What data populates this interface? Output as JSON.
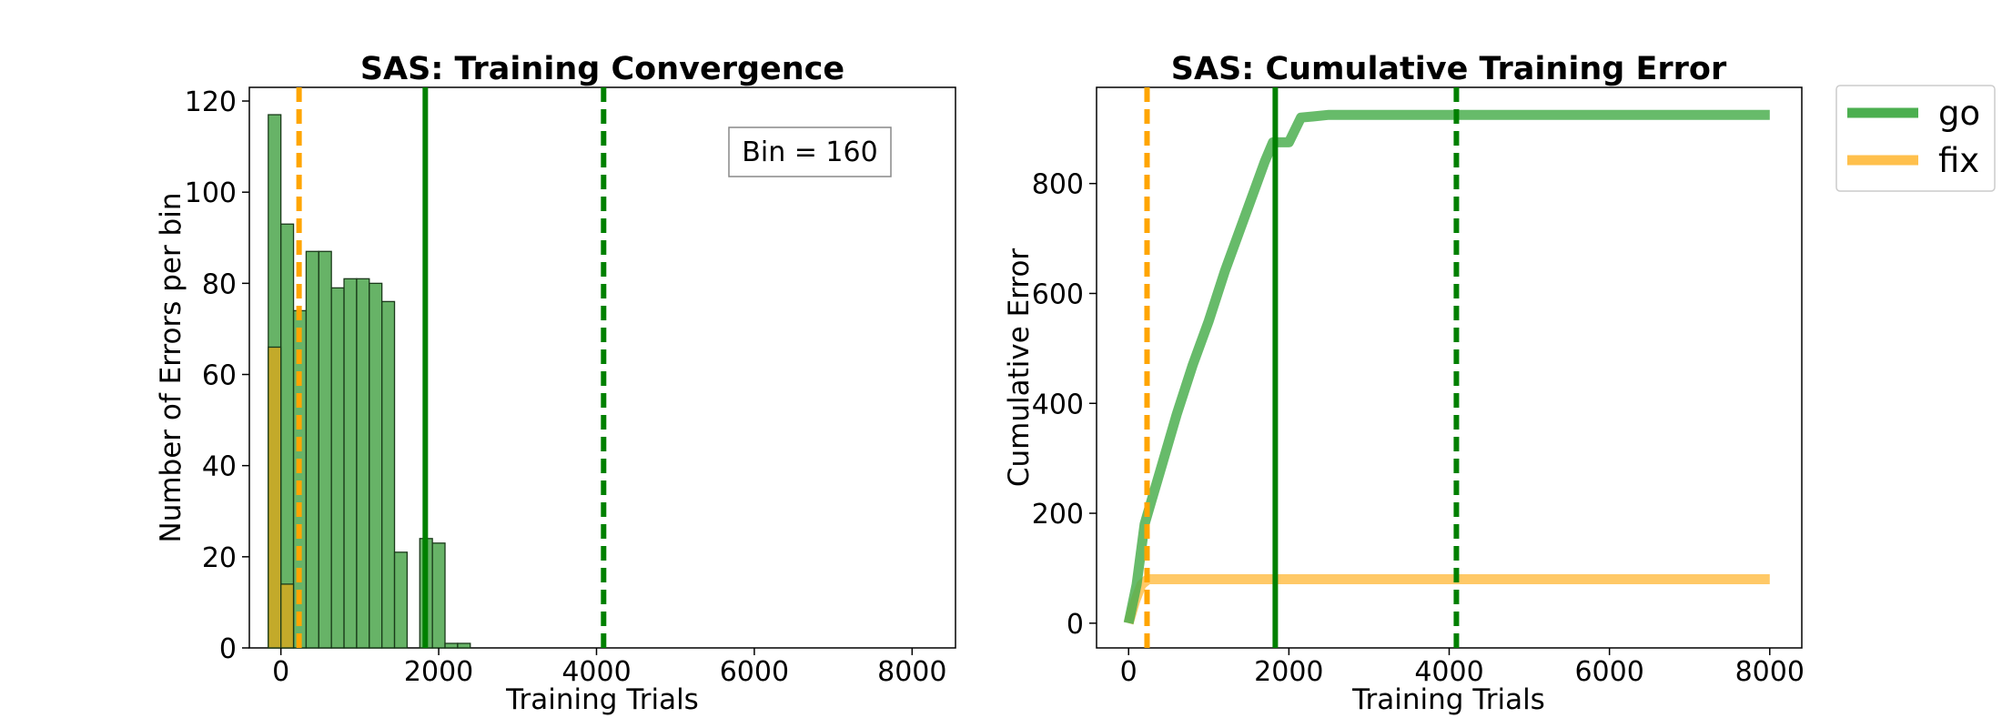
{
  "chart_data": [
    {
      "type": "bar",
      "title": "SAS: Training Convergence",
      "xlabel": "Training Trials",
      "ylabel": "Number of Errors per bin",
      "xlim": [
        -400,
        8550
      ],
      "ylim": [
        0,
        123
      ],
      "xticks": [
        0,
        2000,
        4000,
        6000,
        8000
      ],
      "yticks": [
        0,
        20,
        40,
        60,
        80,
        100,
        120
      ],
      "annotation": "Bin = 160",
      "bin_width": 160,
      "series": [
        {
          "name": "go",
          "color": "#4ca64c",
          "bins": [
            {
              "x": -80,
              "y": 117
            },
            {
              "x": 80,
              "y": 93
            },
            {
              "x": 240,
              "y": 74
            },
            {
              "x": 400,
              "y": 87
            },
            {
              "x": 560,
              "y": 87
            },
            {
              "x": 720,
              "y": 79
            },
            {
              "x": 880,
              "y": 81
            },
            {
              "x": 1040,
              "y": 81
            },
            {
              "x": 1200,
              "y": 80
            },
            {
              "x": 1360,
              "y": 76
            },
            {
              "x": 1520,
              "y": 21
            },
            {
              "x": 1680,
              "y": 0
            },
            {
              "x": 1840,
              "y": 24
            },
            {
              "x": 2000,
              "y": 23
            },
            {
              "x": 2160,
              "y": 1
            },
            {
              "x": 2320,
              "y": 1
            }
          ]
        },
        {
          "name": "fix",
          "color": "#d4a820",
          "bins": [
            {
              "x": -80,
              "y": 66
            },
            {
              "x": 80,
              "y": 14
            }
          ]
        }
      ],
      "vlines": [
        {
          "x": 230,
          "style": "dashed",
          "color": "#ffa500"
        },
        {
          "x": 1830,
          "style": "solid",
          "color": "#008000"
        },
        {
          "x": 4090,
          "style": "dashed",
          "color": "#008000"
        }
      ]
    },
    {
      "type": "line",
      "title": "SAS: Cumulative Training Error",
      "xlabel": "Training Trials",
      "ylabel": "Cumulative Error",
      "xlim": [
        -400,
        8400
      ],
      "ylim": [
        -45,
        975
      ],
      "xticks": [
        0,
        2000,
        4000,
        6000,
        8000
      ],
      "yticks": [
        0,
        200,
        400,
        600,
        800
      ],
      "legend_position": "outside-top-right",
      "series": [
        {
          "name": "go",
          "color": "#4caf50",
          "points": [
            [
              0,
              0
            ],
            [
              100,
              70
            ],
            [
              200,
              180
            ],
            [
              300,
              230
            ],
            [
              400,
              280
            ],
            [
              500,
              330
            ],
            [
              600,
              380
            ],
            [
              800,
              470
            ],
            [
              1000,
              550
            ],
            [
              1200,
              640
            ],
            [
              1400,
              720
            ],
            [
              1600,
              800
            ],
            [
              1700,
              840
            ],
            [
              1800,
              875
            ],
            [
              1900,
              875
            ],
            [
              2000,
              875
            ],
            [
              2050,
              890
            ],
            [
              2150,
              920
            ],
            [
              2300,
              922
            ],
            [
              2500,
              925
            ],
            [
              8000,
              925
            ]
          ]
        },
        {
          "name": "fix",
          "color": "#ffc04c",
          "points": [
            [
              0,
              0
            ],
            [
              80,
              40
            ],
            [
              160,
              70
            ],
            [
              240,
              80
            ],
            [
              8000,
              80
            ]
          ]
        }
      ],
      "vlines": [
        {
          "x": 230,
          "style": "dashed",
          "color": "#ffa500"
        },
        {
          "x": 1830,
          "style": "solid",
          "color": "#008000"
        },
        {
          "x": 4090,
          "style": "dashed",
          "color": "#008000"
        }
      ]
    }
  ]
}
